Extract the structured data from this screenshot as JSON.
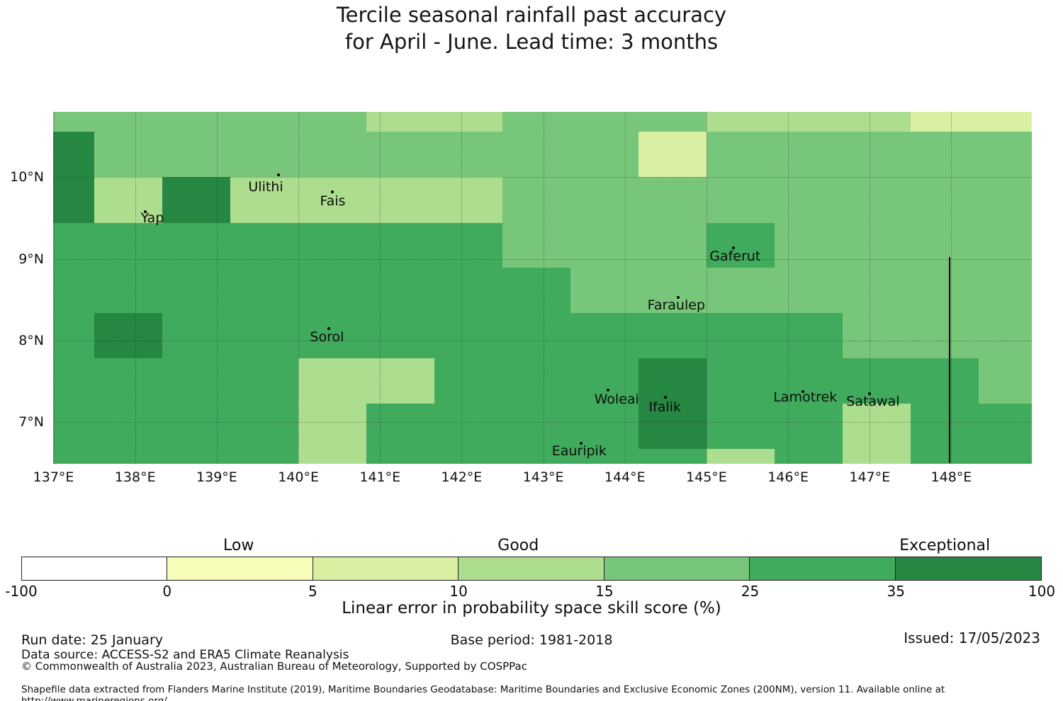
{
  "title": {
    "line1": "Tercile seasonal rainfall past accuracy",
    "line2": "for April - June. Lead time: 3 months"
  },
  "chart_data": {
    "type": "heatmap",
    "title": "Tercile seasonal rainfall past accuracy for April - June. Lead time: 3 months",
    "value_label": "Linear error in probability space skill score (%)",
    "lon_edges_deg_e": [
      136.995,
      137.5,
      138.333,
      139.167,
      140.0,
      140.833,
      141.667,
      142.5,
      143.333,
      144.167,
      145.0,
      145.833,
      146.667,
      147.5,
      148.333,
      148.986
    ],
    "lat_edges_deg_n": [
      10.803,
      10.556,
      10.0,
      9.444,
      8.889,
      8.333,
      7.778,
      7.222,
      6.667,
      6.488
    ],
    "code_bins": {
      "W": {
        "range": "-100 to 0",
        "color": "#ffffff"
      },
      "Y": {
        "range": "0 to 5",
        "color": "#f7fcb9"
      },
      "A": {
        "range": "5 to 10",
        "color": "#d9f0a3"
      },
      "B": {
        "range": "10 to 15",
        "color": "#addd8e"
      },
      "C": {
        "range": "15 to 25",
        "color": "#78c679"
      },
      "D": {
        "range": "25 to 35",
        "color": "#41ab5d"
      },
      "E": {
        "range": "35 to 100",
        "color": "#268742"
      }
    },
    "grid_codes": [
      [
        "C",
        "C",
        "C",
        "C",
        "C",
        "B",
        "B",
        "C",
        "C",
        "C",
        "B",
        "B",
        "B",
        "A",
        "A"
      ],
      [
        "E",
        "C",
        "C",
        "C",
        "C",
        "C",
        "C",
        "C",
        "C",
        "A",
        "C",
        "C",
        "C",
        "C",
        "C"
      ],
      [
        "E",
        "B",
        "E",
        "B",
        "B",
        "B",
        "B",
        "C",
        "C",
        "C",
        "C",
        "C",
        "C",
        "C",
        "C"
      ],
      [
        "D",
        "D",
        "D",
        "D",
        "D",
        "D",
        "D",
        "C",
        "C",
        "C",
        "D",
        "C",
        "C",
        "C",
        "C"
      ],
      [
        "D",
        "D",
        "D",
        "D",
        "D",
        "D",
        "D",
        "D",
        "C",
        "C",
        "C",
        "C",
        "C",
        "C",
        "C"
      ],
      [
        "D",
        "E",
        "D",
        "D",
        "D",
        "D",
        "D",
        "D",
        "D",
        "D",
        "D",
        "D",
        "C",
        "C",
        "C"
      ],
      [
        "D",
        "D",
        "D",
        "D",
        "B",
        "B",
        "D",
        "D",
        "D",
        "E",
        "D",
        "D",
        "D",
        "D",
        "C"
      ],
      [
        "D",
        "D",
        "D",
        "D",
        "B",
        "D",
        "D",
        "D",
        "D",
        "E",
        "D",
        "D",
        "B",
        "D",
        "D"
      ],
      [
        "D",
        "D",
        "D",
        "D",
        "B",
        "D",
        "D",
        "D",
        "D",
        "D",
        "B",
        "D",
        "B",
        "D",
        "D"
      ]
    ],
    "x_ticks": [
      {
        "lon": 137,
        "label": "137°E"
      },
      {
        "lon": 138,
        "label": "138°E"
      },
      {
        "lon": 139,
        "label": "139°E"
      },
      {
        "lon": 140,
        "label": "140°E"
      },
      {
        "lon": 141,
        "label": "141°E"
      },
      {
        "lon": 142,
        "label": "142°E"
      },
      {
        "lon": 143,
        "label": "143°E"
      },
      {
        "lon": 144,
        "label": "144°E"
      },
      {
        "lon": 145,
        "label": "145°E"
      },
      {
        "lon": 146,
        "label": "146°E"
      },
      {
        "lon": 147,
        "label": "147°E"
      },
      {
        "lon": 148,
        "label": "148°E"
      }
    ],
    "y_ticks": [
      {
        "lat": 10,
        "label": "10°N"
      },
      {
        "lat": 9,
        "label": "9°N"
      },
      {
        "lat": 8,
        "label": "8°N"
      },
      {
        "lat": 7,
        "label": "7°N"
      }
    ],
    "islands": [
      {
        "name": "Yap",
        "label_lon": 138.21,
        "label_lat": 9.5,
        "dot_lon": 138.12,
        "dot_lat": 9.58
      },
      {
        "name": "Ulithi",
        "label_lon": 139.6,
        "label_lat": 9.88,
        "dot_lon": 139.76,
        "dot_lat": 10.03
      },
      {
        "name": "Fais",
        "label_lon": 140.42,
        "label_lat": 9.71,
        "dot_lon": 140.42,
        "dot_lat": 9.82
      },
      {
        "name": "Gaferut",
        "label_lon": 145.35,
        "label_lat": 9.03,
        "dot_lon": 145.33,
        "dot_lat": 9.14
      },
      {
        "name": "Faraulep",
        "label_lon": 144.63,
        "label_lat": 8.43,
        "dot_lon": 144.65,
        "dot_lat": 8.53
      },
      {
        "name": "Sorol",
        "label_lon": 140.35,
        "label_lat": 8.04,
        "dot_lon": 140.37,
        "dot_lat": 8.15
      },
      {
        "name": "Woleai",
        "label_lon": 143.9,
        "label_lat": 7.28,
        "dot_lon": 143.79,
        "dot_lat": 7.39
      },
      {
        "name": "Ifalik",
        "label_lon": 144.49,
        "label_lat": 7.18,
        "dot_lon": 144.5,
        "dot_lat": 7.3
      },
      {
        "name": "Lamotrek",
        "label_lon": 146.21,
        "label_lat": 7.3,
        "dot_lon": 146.18,
        "dot_lat": 7.37
      },
      {
        "name": "Satawal",
        "label_lon": 147.04,
        "label_lat": 7.25,
        "dot_lon": 147.0,
        "dot_lat": 7.35
      },
      {
        "name": "Eauripik",
        "label_lon": 143.44,
        "label_lat": 6.64,
        "dot_lon": 143.46,
        "dot_lat": 6.74
      }
    ],
    "boundary_line": {
      "lon": 147.98,
      "lat_top": 9.02,
      "lat_bottom": 6.5
    }
  },
  "colorbar": {
    "segments": [
      {
        "color": "#ffffff"
      },
      {
        "color": "#f7fcb9"
      },
      {
        "color": "#d9f0a3"
      },
      {
        "color": "#addd8e"
      },
      {
        "color": "#78c679"
      },
      {
        "color": "#41ab5d"
      },
      {
        "color": "#268742"
      }
    ],
    "tick_labels": [
      "-100",
      "0",
      "5",
      "10",
      "15",
      "25",
      "35",
      "100"
    ],
    "category_labels": [
      {
        "text": "Low",
        "pos_pct": 21.3
      },
      {
        "text": "Good",
        "pos_pct": 48.7
      },
      {
        "text": "Exceptional",
        "pos_pct": 90.5
      }
    ],
    "caption": "Linear error in probability space skill score (%)"
  },
  "footer": {
    "run_date": "Run date: 25 January",
    "base_period": "Base period: 1981-2018",
    "issued": "Issued: 17/05/2023",
    "data_source": "Data source: ACCESS-S2 and ERA5 Climate Reanalysis",
    "copyright": "© Commonwealth of Australia 2023, Australian Bureau of Meteorology, Supported by COSPPac",
    "shapefile_note": "Shapefile data extracted from Flanders Marine Institute (2019), Maritime Boundaries Geodatabase: Maritime Boundaries and Exclusive Economic Zones (200NM), version 11. Available online at http://www.marineregions.org/."
  }
}
